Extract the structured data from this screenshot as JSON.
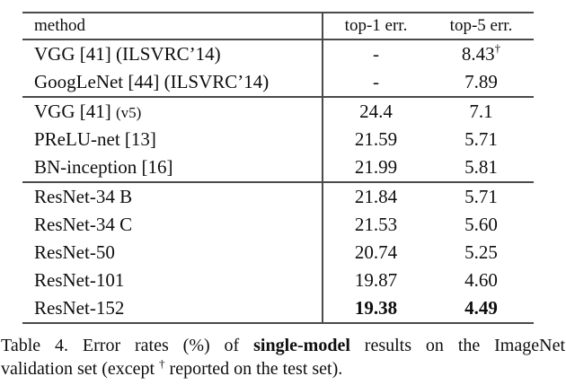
{
  "page": {
    "background": "#ffffff",
    "text_color": "#0e0e0e",
    "rule_color": "#4a4a4a"
  },
  "table": {
    "header": {
      "method": "method",
      "top1": "top-1 err.",
      "top5": "top-5 err."
    },
    "groups": [
      {
        "rows": [
          {
            "method": "VGG [41] (ILSVRC’14)",
            "top1": "-",
            "top5": "8.43",
            "top5_sup": "†"
          },
          {
            "method": "GoogLeNet [44] (ILSVRC’14)",
            "top1": "-",
            "top5": "7.89"
          }
        ]
      },
      {
        "rows": [
          {
            "method": "VGG [41] ",
            "method_small": "(v5)",
            "top1": "24.4",
            "top5": "7.1"
          },
          {
            "method": "PReLU-net [13]",
            "top1": "21.59",
            "top5": "5.71"
          },
          {
            "method": "BN-inception [16]",
            "top1": "21.99",
            "top5": "5.81"
          }
        ]
      },
      {
        "rows": [
          {
            "method": "ResNet-34 B",
            "top1": "21.84",
            "top5": "5.71"
          },
          {
            "method": "ResNet-34 C",
            "top1": "21.53",
            "top5": "5.60"
          },
          {
            "method": "ResNet-50",
            "top1": "20.74",
            "top5": "5.25"
          },
          {
            "method": "ResNet-101",
            "top1": "19.87",
            "top5": "4.60"
          },
          {
            "method": "ResNet-152",
            "top1": "19.38",
            "top5": "4.49",
            "bold_values": true
          }
        ]
      }
    ]
  },
  "caption": {
    "line1": {
      "part1": "Table 4. Error rates (%) of ",
      "bold": "single-model",
      "part2": " results on the ImageNet"
    },
    "line2": {
      "part1": "validation set (except ",
      "sup": "†",
      "part2": " reported on the test set)."
    }
  }
}
